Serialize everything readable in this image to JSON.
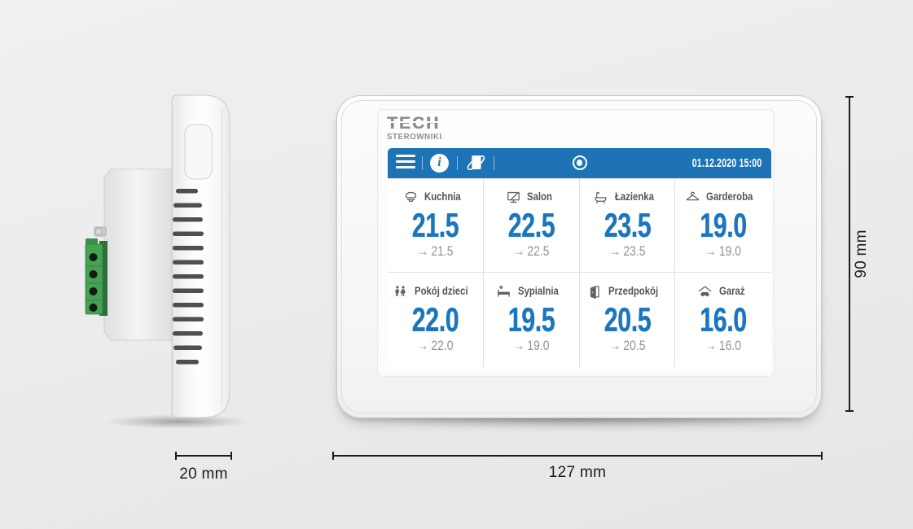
{
  "dimensions": {
    "depth_label": "20 mm",
    "width_label": "127 mm",
    "height_label": "90 mm"
  },
  "device": {
    "logo": {
      "brand": "TECH",
      "subtitle": "STEROWNIKI"
    },
    "topbar": {
      "datetime": "01.12.2020 15:00",
      "info_glyph": "i",
      "icons": [
        "menu-icon",
        "info-icon",
        "module-icon",
        "target-icon"
      ]
    },
    "setpoint_arrow": "→",
    "tiles": [
      {
        "name": "Kuchnia",
        "icon": "chef-hat-icon",
        "temp": "21.5",
        "setpoint": "21.5"
      },
      {
        "name": "Salon",
        "icon": "tv-icon",
        "temp": "22.5",
        "setpoint": "22.5"
      },
      {
        "name": "Łazienka",
        "icon": "bathtub-icon",
        "temp": "23.5",
        "setpoint": "23.5"
      },
      {
        "name": "Garderoba",
        "icon": "hanger-icon",
        "temp": "19.0",
        "setpoint": "19.0"
      },
      {
        "name": "Pokój dzieci",
        "icon": "children-icon",
        "temp": "22.0",
        "setpoint": "22.0"
      },
      {
        "name": "Sypialnia",
        "icon": "bed-icon",
        "temp": "19.5",
        "setpoint": "19.0"
      },
      {
        "name": "Przedpokój",
        "icon": "door-icon",
        "temp": "20.5",
        "setpoint": "20.5"
      },
      {
        "name": "Garaż",
        "icon": "garage-icon",
        "temp": "16.0",
        "setpoint": "16.0"
      }
    ]
  },
  "colors": {
    "bar_blue": "#1e73b6",
    "temp_blue": "#1b76c0",
    "label_gray": "#515558",
    "setpoint_gray": "#8f9497",
    "terminal_green": "#46a152",
    "background_gray": "#ebebec"
  }
}
